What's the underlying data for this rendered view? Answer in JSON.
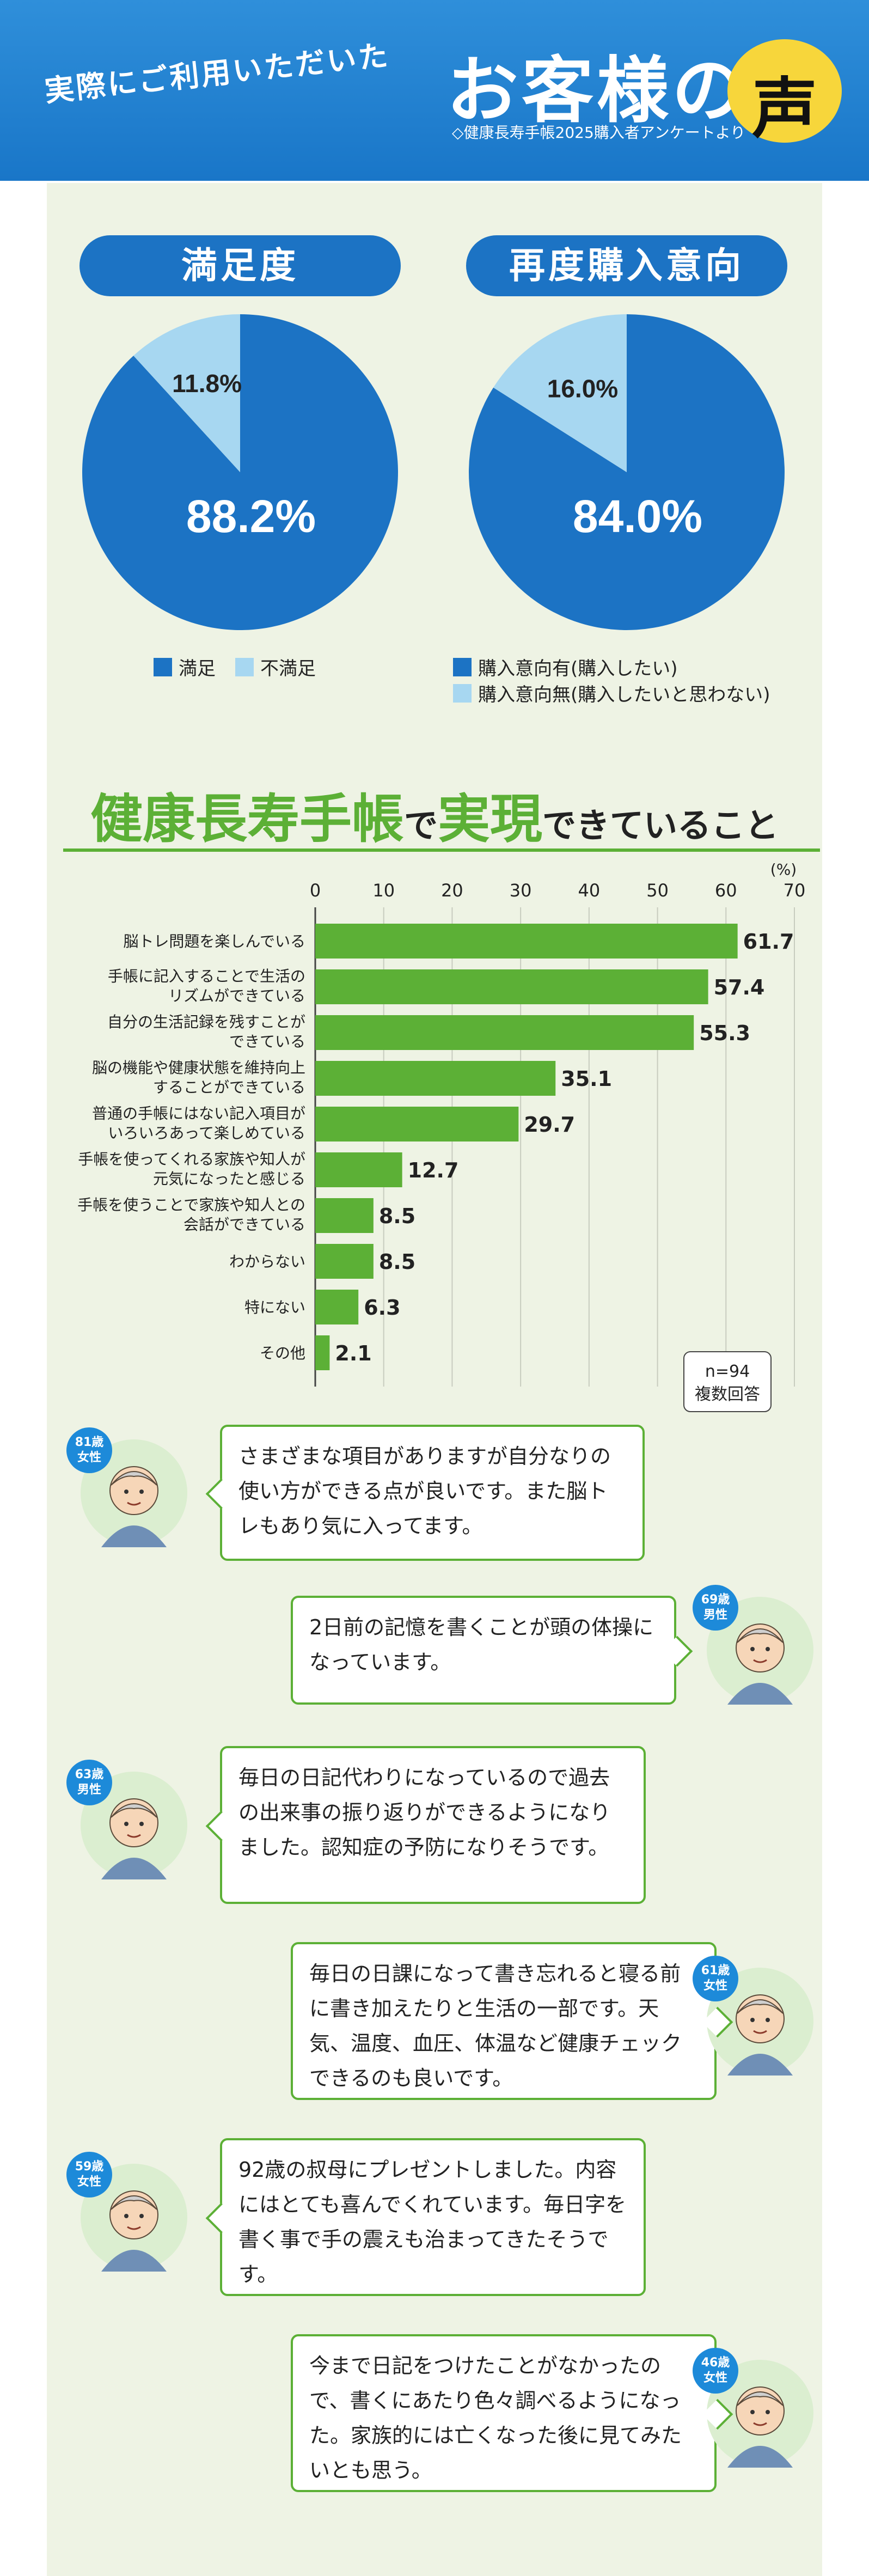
{
  "header": {
    "subtitle": "実際にご利用いただいた",
    "title": "お客様の",
    "bubble": "声",
    "note": "◇健康長寿手帳2025購入者アンケートより"
  },
  "colors": {
    "blue": "#1c73c4",
    "light_blue": "#a7d7f1",
    "green": "#5cb036",
    "badge": "#1d8ad9"
  },
  "pie1": {
    "title": "満足度",
    "big_label": "88.2%",
    "small_label": "11.8%",
    "legend": [
      "満足",
      "不満足"
    ]
  },
  "pie2": {
    "title": "再度購入意向",
    "big_label": "84.0%",
    "small_label": "16.0%",
    "legend": [
      "購入意向有(購入したい)",
      "購入意向無(購入したいと思わない)"
    ]
  },
  "bar_section": {
    "title_a": "健康長寿手帳",
    "title_b": "で",
    "title_c": "実現",
    "title_d": "できていること",
    "unit": "(%)",
    "note_line1": "n=94",
    "note_line2": "複数回答"
  },
  "chart_data": [
    {
      "type": "pie",
      "title": "満足度",
      "categories": [
        "満足",
        "不満足"
      ],
      "values": [
        88.2,
        11.8
      ],
      "colors": [
        "#1c73c4",
        "#a7d7f1"
      ]
    },
    {
      "type": "pie",
      "title": "再度購入意向",
      "categories": [
        "購入意向有(購入したい)",
        "購入意向無(購入したいと思わない)"
      ],
      "values": [
        84.0,
        16.0
      ],
      "colors": [
        "#1c73c4",
        "#a7d7f1"
      ]
    },
    {
      "type": "bar",
      "orientation": "horizontal",
      "title": "健康長寿手帳で実現できていること",
      "unit": "(%)",
      "xlim": [
        0,
        70
      ],
      "ticks": [
        "0",
        "10",
        "20",
        "30",
        "40",
        "50",
        "60",
        "70"
      ],
      "grid": true,
      "categories": [
        [
          "脳トレ問題を楽しんでいる"
        ],
        [
          "手帳に記入することで生活の",
          "リズムができている"
        ],
        [
          "自分の生活記録を残すことが",
          "できている"
        ],
        [
          "脳の機能や健康状態を維持向上",
          "することができている"
        ],
        [
          "普通の手帳にはない記入項目が",
          "いろいろあって楽しめている"
        ],
        [
          "手帳を使ってくれる家族や知人が",
          "元気になったと感じる"
        ],
        [
          "手帳を使うことで家族や知人との",
          "会話ができている"
        ],
        [
          "わからない"
        ],
        [
          "特にない"
        ],
        [
          "その他"
        ]
      ],
      "values": [
        61.7,
        57.4,
        55.3,
        35.1,
        29.7,
        12.7,
        8.5,
        8.5,
        6.3,
        2.1
      ],
      "value_labels": [
        "61.7",
        "57.4",
        "55.3",
        "35.1",
        "29.7",
        "12.7",
        "8.5",
        "8.5",
        "6.3",
        "2.1"
      ],
      "color": "#5cb036"
    }
  ],
  "testimonials": [
    {
      "age": "81歳",
      "gender": "女性",
      "text": "さまざまな項目がありますが自分なりの使い方ができる点が良いです。また脳トレもあり気に入ってます。"
    },
    {
      "age": "69歳",
      "gender": "男性",
      "text": "2日前の記憶を書くことが頭の体操になっています。"
    },
    {
      "age": "63歳",
      "gender": "男性",
      "text": "毎日の日記代わりになっているので過去の出来事の振り返りができるようになりました。認知症の予防になりそうです。"
    },
    {
      "age": "61歳",
      "gender": "女性",
      "text": "毎日の日課になって書き忘れると寝る前に書き加えたりと生活の一部です。天気、温度、血圧、体温など健康チェックできるのも良いです。"
    },
    {
      "age": "59歳",
      "gender": "女性",
      "text": "92歳の叔母にプレゼントしました。内容にはとても喜んでくれています。毎日字を書く事で手の震えも治まってきたそうです。"
    },
    {
      "age": "46歳",
      "gender": "女性",
      "text": "今まで日記をつけたことがなかったので、書くにあたり色々調べるようになった。家族的には亡くなった後に見てみたいとも思う。"
    }
  ]
}
